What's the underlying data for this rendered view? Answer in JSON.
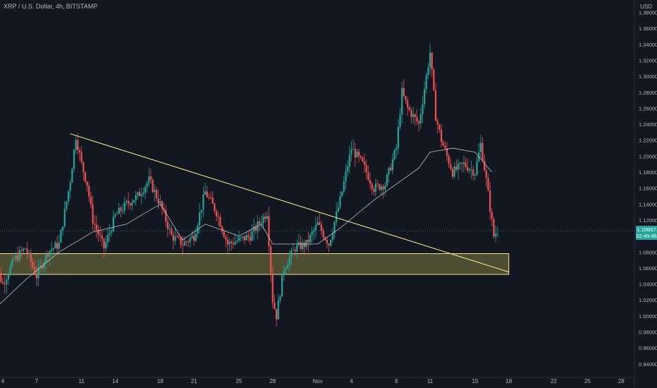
{
  "header": {
    "title": "XRP / U.S. Dollar, 4h, BITSTAMP",
    "currency": "USD"
  },
  "price_label": {
    "price": "1.10667",
    "countdown": "02:49:46"
  },
  "colors": {
    "background": "#131722",
    "up": "#26a69a",
    "down": "#ef5350",
    "moving_average": "#c8d1d9",
    "trendline": "#e4e07e",
    "support_zone_fill": "#7e7a3e",
    "support_zone_border": "#f0e68c",
    "axis_text": "#b2b5be"
  },
  "chart_data": {
    "type": "candlestick",
    "title": "XRP / U.S. Dollar, 4h, BITSTAMP",
    "ylabel": "USD",
    "ylim": [
      0.925,
      1.39
    ],
    "y_ticks": [
      "0.94000",
      "0.96000",
      "0.98000",
      "1.00000",
      "1.02000",
      "1.04000",
      "1.06000",
      "1.08000",
      "1.10000",
      "1.12000",
      "1.14000",
      "1.16000",
      "1.18000",
      "1.20000",
      "1.22000",
      "1.24000",
      "1.26000",
      "1.28000",
      "1.30000",
      "1.32000",
      "1.34000",
      "1.36000",
      "1.38000"
    ],
    "x_ticks": [
      {
        "label": "4",
        "date": "2022-10-04"
      },
      {
        "label": "7",
        "date": "2022-10-07"
      },
      {
        "label": "11",
        "date": "2022-10-11"
      },
      {
        "label": "14",
        "date": "2022-10-14"
      },
      {
        "label": "18",
        "date": "2022-10-18"
      },
      {
        "label": "21",
        "date": "2022-10-21"
      },
      {
        "label": "25",
        "date": "2022-10-25"
      },
      {
        "label": "28",
        "date": "2022-10-28"
      },
      {
        "label": "Nov",
        "date": "2022-11-01"
      },
      {
        "label": "4",
        "date": "2022-11-04"
      },
      {
        "label": "8",
        "date": "2022-11-08"
      },
      {
        "label": "11",
        "date": "2022-11-11"
      },
      {
        "label": "15",
        "date": "2022-11-15"
      },
      {
        "label": "18",
        "date": "2022-11-18"
      },
      {
        "label": "22",
        "date": "2022-11-22"
      },
      {
        "label": "25",
        "date": "2022-11-25"
      },
      {
        "label": "28",
        "date": "2022-11-28"
      }
    ],
    "price_anchors": [
      {
        "date": "2022-10-03",
        "price": 1.075
      },
      {
        "date": "2022-10-04",
        "price": 1.04
      },
      {
        "date": "2022-10-05",
        "price": 1.07
      },
      {
        "date": "2022-10-06",
        "price": 1.085
      },
      {
        "date": "2022-10-07",
        "price": 1.05
      },
      {
        "date": "2022-10-08",
        "price": 1.08
      },
      {
        "date": "2022-10-09",
        "price": 1.09
      },
      {
        "date": "2022-10-10",
        "price": 1.17
      },
      {
        "date": "2022-10-10T12:00",
        "price": 1.225
      },
      {
        "date": "2022-10-11",
        "price": 1.19
      },
      {
        "date": "2022-10-11T12:00",
        "price": 1.165
      },
      {
        "date": "2022-10-12",
        "price": 1.12
      },
      {
        "date": "2022-10-13",
        "price": 1.085
      },
      {
        "date": "2022-10-14",
        "price": 1.125
      },
      {
        "date": "2022-10-15",
        "price": 1.14
      },
      {
        "date": "2022-10-16",
        "price": 1.15
      },
      {
        "date": "2022-10-17",
        "price": 1.17
      },
      {
        "date": "2022-10-18",
        "price": 1.14
      },
      {
        "date": "2022-10-19",
        "price": 1.1
      },
      {
        "date": "2022-10-20",
        "price": 1.09
      },
      {
        "date": "2022-10-21",
        "price": 1.1
      },
      {
        "date": "2022-10-22",
        "price": 1.155
      },
      {
        "date": "2022-10-23",
        "price": 1.13
      },
      {
        "date": "2022-10-24",
        "price": 1.09
      },
      {
        "date": "2022-10-25",
        "price": 1.095
      },
      {
        "date": "2022-10-26",
        "price": 1.1
      },
      {
        "date": "2022-10-27",
        "price": 1.12
      },
      {
        "date": "2022-10-27T12:00",
        "price": 1.13
      },
      {
        "date": "2022-10-28",
        "price": 1.02
      },
      {
        "date": "2022-10-28T08:00",
        "price": 1.0
      },
      {
        "date": "2022-10-29",
        "price": 1.06
      },
      {
        "date": "2022-10-30",
        "price": 1.085
      },
      {
        "date": "2022-10-31",
        "price": 1.09
      },
      {
        "date": "2022-11-01",
        "price": 1.115
      },
      {
        "date": "2022-11-02",
        "price": 1.09
      },
      {
        "date": "2022-11-03",
        "price": 1.145
      },
      {
        "date": "2022-11-04",
        "price": 1.21
      },
      {
        "date": "2022-11-05",
        "price": 1.19
      },
      {
        "date": "2022-11-06",
        "price": 1.16
      },
      {
        "date": "2022-11-07",
        "price": 1.165
      },
      {
        "date": "2022-11-08",
        "price": 1.21
      },
      {
        "date": "2022-11-08T12:00",
        "price": 1.28
      },
      {
        "date": "2022-11-09",
        "price": 1.26
      },
      {
        "date": "2022-11-10",
        "price": 1.24
      },
      {
        "date": "2022-11-11",
        "price": 1.33
      },
      {
        "date": "2022-11-11T12:00",
        "price": 1.25
      },
      {
        "date": "2022-11-12",
        "price": 1.22
      },
      {
        "date": "2022-11-13",
        "price": 1.18
      },
      {
        "date": "2022-11-14",
        "price": 1.19
      },
      {
        "date": "2022-11-15",
        "price": 1.18
      },
      {
        "date": "2022-11-15T12:00",
        "price": 1.215
      },
      {
        "date": "2022-11-16",
        "price": 1.17
      },
      {
        "date": "2022-11-16T16:00",
        "price": 1.1
      },
      {
        "date": "2022-11-17",
        "price": 1.107
      }
    ],
    "moving_average": [
      {
        "date": "2022-10-03",
        "price": 1.005
      },
      {
        "date": "2022-10-06",
        "price": 1.045
      },
      {
        "date": "2022-10-09",
        "price": 1.08
      },
      {
        "date": "2022-10-12",
        "price": 1.105
      },
      {
        "date": "2022-10-15",
        "price": 1.115
      },
      {
        "date": "2022-10-18",
        "price": 1.14
      },
      {
        "date": "2022-10-20",
        "price": 1.095
      },
      {
        "date": "2022-10-22",
        "price": 1.115
      },
      {
        "date": "2022-10-25",
        "price": 1.1
      },
      {
        "date": "2022-10-27",
        "price": 1.115
      },
      {
        "date": "2022-10-28",
        "price": 1.09
      },
      {
        "date": "2022-11-01",
        "price": 1.09
      },
      {
        "date": "2022-11-03",
        "price": 1.11
      },
      {
        "date": "2022-11-06",
        "price": 1.145
      },
      {
        "date": "2022-11-08",
        "price": 1.165
      },
      {
        "date": "2022-11-10",
        "price": 1.185
      },
      {
        "date": "2022-11-11",
        "price": 1.205
      },
      {
        "date": "2022-11-13",
        "price": 1.21
      },
      {
        "date": "2022-11-15",
        "price": 1.205
      },
      {
        "date": "2022-11-16T12:00",
        "price": 1.18
      }
    ],
    "trendline": {
      "start": {
        "date": "2022-10-10",
        "price": 1.228
      },
      "end": {
        "date": "2022-11-18",
        "price": 1.055
      }
    },
    "support_zone": {
      "start": "2022-10-03",
      "end": "2022-11-18",
      "top": 1.078,
      "bottom": 1.052
    },
    "current_price": 1.10667,
    "grid": false
  }
}
